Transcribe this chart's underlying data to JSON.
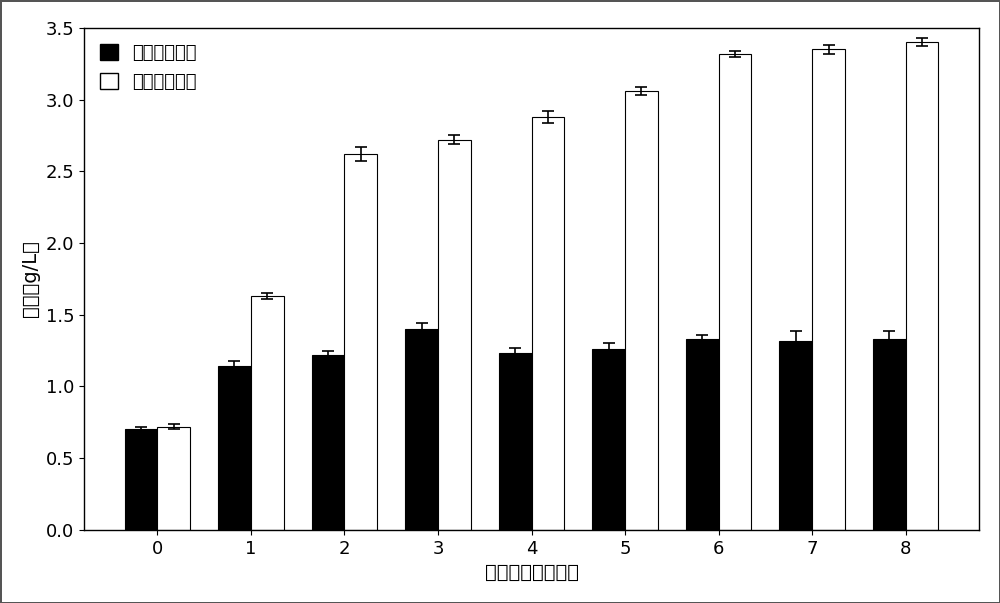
{
  "categories": [
    0,
    1,
    2,
    3,
    4,
    5,
    6,
    7,
    8
  ],
  "unevolved_values": [
    0.7,
    1.14,
    1.22,
    1.4,
    1.23,
    1.26,
    1.33,
    1.32,
    1.33
  ],
  "evolved_values": [
    0.72,
    1.63,
    2.62,
    2.72,
    2.88,
    3.06,
    3.32,
    3.35,
    3.4
  ],
  "unevolved_errors": [
    0.02,
    0.04,
    0.03,
    0.04,
    0.04,
    0.04,
    0.03,
    0.07,
    0.06
  ],
  "evolved_errors": [
    0.02,
    0.02,
    0.05,
    0.03,
    0.04,
    0.03,
    0.02,
    0.03,
    0.03
  ],
  "unevolved_color": "#000000",
  "evolved_color": "#ffffff",
  "bar_edgecolor": "#000000",
  "legend_label_unevolved": "未进化小球藻",
  "legend_label_evolved": "进化后小球藻",
  "xlabel": "培养时间（天数）",
  "ylabel": "干量（g/L）",
  "ylim": [
    0.0,
    3.5
  ],
  "yticks": [
    0.0,
    0.5,
    1.0,
    1.5,
    2.0,
    2.5,
    3.0,
    3.5
  ],
  "bar_width": 0.35,
  "capsize": 4,
  "background_color": "#ffffff",
  "figure_bgcolor": "#ffffff",
  "border_color": "#000000",
  "axis_label_fontsize": 14,
  "tick_fontsize": 13,
  "legend_fontsize": 13
}
